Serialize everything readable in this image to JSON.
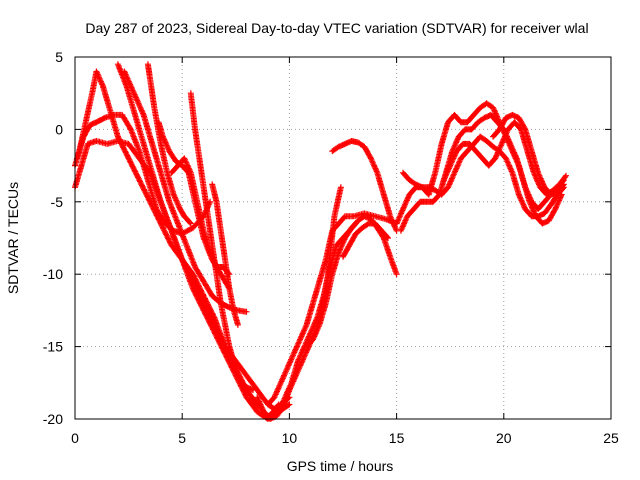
{
  "chart_data": {
    "type": "scatter",
    "title": "Day 287 of 2023, Sidereal Day-to-day VTEC variation (SDTVAR) for receiver wlal",
    "xlabel": "GPS time / hours",
    "ylabel": "SDTVAR / TECUs",
    "xlim": [
      0,
      25
    ],
    "ylim": [
      -20,
      5
    ],
    "xticks": [
      "0",
      "5",
      "10",
      "15",
      "20",
      "25"
    ],
    "yticks": [
      "-20",
      "-15",
      "-10",
      "-5",
      "0",
      "5"
    ],
    "grid": true,
    "marker": "+",
    "color": "#ff0000",
    "series": [
      {
        "x": [
          0.0,
          0.2,
          0.5,
          0.8,
          1.0,
          1.3,
          1.6,
          2.0,
          2.5,
          3.0,
          3.5,
          4.0,
          4.5,
          5.0,
          5.5,
          6.0,
          6.5,
          7.0,
          7.5,
          8.0,
          8.5,
          9.0,
          9.3,
          9.6,
          10.0
        ],
        "y": [
          -2.5,
          -1.5,
          0.5,
          2.5,
          4.0,
          3.0,
          1.5,
          -0.5,
          -2.0,
          -3.5,
          -5.0,
          -6.5,
          -8.0,
          -9.0,
          -10.0,
          -11.5,
          -13.0,
          -15.0,
          -16.5,
          -18.0,
          -19.0,
          -19.8,
          -19.5,
          -19.0,
          -18.5
        ]
      },
      {
        "x": [
          0.0,
          0.3,
          0.6,
          1.0,
          1.5,
          2.0,
          2.5,
          3.0,
          3.5,
          4.0,
          4.5,
          5.0,
          5.5,
          6.0,
          6.5,
          7.0,
          7.5,
          8.0,
          8.5,
          9.0,
          9.5,
          10.0
        ],
        "y": [
          -4.0,
          -2.5,
          -1.0,
          -0.8,
          -1.0,
          -0.8,
          -1.0,
          -2.0,
          -3.0,
          -5.0,
          -7.0,
          -9.0,
          -10.5,
          -12.0,
          -13.5,
          -15.0,
          -16.0,
          -17.0,
          -18.0,
          -19.0,
          -19.5,
          -19.0
        ]
      },
      {
        "x": [
          0.1,
          0.4,
          0.7,
          1.0,
          1.4,
          1.8,
          2.2,
          2.6,
          3.0,
          3.4,
          3.8,
          4.2,
          4.6,
          5.0,
          5.5,
          6.0,
          6.3
        ],
        "y": [
          -2.0,
          -0.5,
          0.3,
          0.5,
          0.8,
          1.0,
          1.0,
          0.0,
          -1.5,
          -3.5,
          -5.5,
          -6.5,
          -7.0,
          -7.2,
          -6.8,
          -6.0,
          -5.0
        ]
      },
      {
        "x": [
          2.0,
          2.4,
          2.8,
          3.2,
          3.6,
          4.0,
          4.5,
          5.0,
          5.5,
          6.0,
          6.5,
          7.0,
          7.5,
          8.0,
          8.5,
          9.0,
          9.5
        ],
        "y": [
          4.5,
          3.0,
          1.0,
          -1.0,
          -3.0,
          -5.0,
          -7.0,
          -9.0,
          -11.0,
          -12.5,
          -14.0,
          -15.5,
          -17.0,
          -18.5,
          -19.5,
          -20.0,
          -19.0
        ]
      },
      {
        "x": [
          2.3,
          2.6,
          2.9,
          3.2,
          3.5,
          3.8,
          4.1,
          4.4,
          4.8,
          5.2,
          5.6,
          6.0,
          6.4,
          6.8,
          7.2,
          7.6,
          8.0
        ],
        "y": [
          4.0,
          3.0,
          2.0,
          1.0,
          -0.5,
          -2.0,
          -3.5,
          -5.0,
          -6.5,
          -8.0,
          -9.5,
          -10.5,
          -11.5,
          -12.0,
          -12.3,
          -12.5,
          -12.6
        ]
      },
      {
        "x": [
          3.4,
          3.5,
          3.7,
          4.0,
          4.3,
          4.6,
          4.9,
          5.1,
          5.4
        ],
        "y": [
          4.5,
          3.5,
          1.5,
          -1.0,
          -3.0,
          -4.5,
          -5.5,
          -6.0,
          -6.5
        ]
      },
      {
        "x": [
          3.9,
          4.1,
          4.4,
          4.7,
          5.0,
          5.3,
          5.6,
          6.0,
          6.4,
          6.8,
          7.2
        ],
        "y": [
          0.5,
          -0.5,
          -1.5,
          -2.2,
          -2.5,
          -3.0,
          -5.0,
          -7.5,
          -9.0,
          -10.0,
          -11.0
        ]
      },
      {
        "x": [
          4.5,
          4.8,
          5.1,
          5.4,
          5.7,
          6.0,
          6.3,
          6.6,
          6.9,
          7.2
        ],
        "y": [
          -3.0,
          -2.5,
          -2.0,
          -3.0,
          -5.0,
          -7.0,
          -8.5,
          -9.5,
          -9.5,
          -10.0
        ]
      },
      {
        "x": [
          5.4,
          5.6,
          5.8,
          6.0,
          6.2,
          6.4,
          6.6,
          6.8,
          7.0,
          7.2,
          7.4,
          7.6,
          7.8,
          8.0,
          8.3
        ],
        "y": [
          2.5,
          0.0,
          -2.0,
          -4.0,
          -6.0,
          -8.0,
          -10.0,
          -12.0,
          -13.5,
          -15.0,
          -16.0,
          -17.0,
          -17.5,
          -17.8,
          -18.0
        ]
      },
      {
        "x": [
          6.4,
          6.6,
          6.8,
          7.0,
          7.2,
          7.4,
          7.6
        ],
        "y": [
          -3.8,
          -5.0,
          -7.0,
          -9.0,
          -11.0,
          -12.5,
          -13.5
        ]
      },
      {
        "x": [
          8.5,
          8.8,
          9.1,
          9.4,
          9.7,
          10.0,
          10.3,
          10.6,
          10.9,
          11.2,
          11.5,
          11.8,
          12.1,
          12.4
        ],
        "y": [
          -18.5,
          -19.5,
          -20.0,
          -19.8,
          -19.2,
          -18.0,
          -17.0,
          -16.0,
          -15.0,
          -14.0,
          -12.5,
          -10.0,
          -6.0,
          -4.0
        ]
      },
      {
        "x": [
          9.0,
          9.3,
          9.6,
          9.9,
          10.2,
          10.5,
          10.8,
          11.1,
          11.4,
          11.7,
          12.0,
          12.3,
          12.6,
          13.0,
          13.5,
          14.0,
          14.5,
          15.0
        ],
        "y": [
          -19.0,
          -18.5,
          -17.5,
          -16.5,
          -15.5,
          -14.5,
          -13.5,
          -12.0,
          -10.5,
          -9.0,
          -7.0,
          -6.5,
          -6.0,
          -6.0,
          -5.8,
          -6.0,
          -6.2,
          -6.5
        ]
      },
      {
        "x": [
          9.5,
          9.8,
          10.1,
          10.4,
          10.7,
          11.0,
          11.3,
          11.6,
          11.9,
          12.2,
          12.5,
          12.8,
          13.1
        ],
        "y": [
          -19.5,
          -18.5,
          -17.5,
          -16.0,
          -15.0,
          -14.0,
          -13.0,
          -11.5,
          -9.5,
          -8.0,
          -7.5,
          -7.0,
          -6.5
        ]
      },
      {
        "x": [
          10.8,
          11.1,
          11.4,
          11.7,
          12.0,
          12.3,
          12.6,
          12.9,
          13.2,
          13.5,
          13.8,
          14.1,
          14.4,
          14.7,
          15.0
        ],
        "y": [
          -15.0,
          -14.5,
          -13.5,
          -12.0,
          -10.0,
          -8.5,
          -7.5,
          -6.8,
          -6.3,
          -6.0,
          -6.2,
          -6.8,
          -7.5,
          -8.8,
          -10.0
        ]
      },
      {
        "x": [
          12.0,
          12.3,
          12.6,
          12.9,
          13.2,
          13.5,
          13.8,
          14.1,
          14.4,
          14.7,
          15.0
        ],
        "y": [
          -1.5,
          -1.2,
          -1.0,
          -0.8,
          -0.9,
          -1.2,
          -2.0,
          -3.0,
          -4.5,
          -6.0,
          -7.0
        ]
      },
      {
        "x": [
          12.5,
          12.8,
          13.1,
          13.4,
          13.7,
          14.0,
          14.3,
          14.6
        ],
        "y": [
          -8.8,
          -8.0,
          -7.2,
          -6.8,
          -6.5,
          -6.5,
          -7.0,
          -7.5
        ]
      },
      {
        "x": [
          15.0,
          15.3,
          15.6,
          15.9,
          16.2,
          16.5,
          16.8,
          17.1,
          17.4,
          17.7,
          18.0,
          18.3,
          18.6,
          18.9,
          19.2,
          19.5,
          19.8,
          20.1,
          20.4,
          20.7,
          21.0,
          21.3,
          21.6,
          21.9,
          22.2,
          22.5,
          22.8
        ],
        "y": [
          -6.5,
          -5.5,
          -4.5,
          -4.0,
          -4.0,
          -4.5,
          -3.0,
          -1.0,
          0.5,
          1.0,
          0.5,
          0.5,
          1.0,
          1.5,
          1.8,
          1.5,
          0.5,
          -0.5,
          -1.5,
          -2.5,
          -4.0,
          -5.0,
          -5.5,
          -5.0,
          -4.5,
          -4.0,
          -3.5
        ]
      },
      {
        "x": [
          15.2,
          15.5,
          15.8,
          16.1,
          16.4,
          16.7,
          17.0,
          17.3,
          17.6,
          17.9,
          18.2,
          18.5,
          18.8,
          19.1,
          19.4,
          19.7,
          20.0,
          20.3,
          20.6,
          20.9,
          21.2,
          21.5,
          21.8,
          22.1,
          22.4,
          22.7
        ],
        "y": [
          -7.0,
          -6.0,
          -5.5,
          -5.0,
          -5.0,
          -5.0,
          -4.5,
          -3.0,
          -1.5,
          -0.5,
          0.0,
          0.0,
          0.5,
          0.8,
          1.0,
          0.5,
          0.0,
          -1.0,
          -2.0,
          -3.5,
          -5.0,
          -6.0,
          -6.5,
          -6.3,
          -5.5,
          -4.5
        ]
      },
      {
        "x": [
          15.3,
          15.6,
          15.9,
          16.2,
          16.5,
          16.8,
          17.1,
          17.4,
          17.7,
          18.0,
          18.3,
          18.6,
          18.9,
          19.2,
          19.5,
          19.8,
          20.1,
          20.4,
          20.7,
          21.0,
          21.3,
          21.6,
          21.9,
          22.2,
          22.5,
          22.8
        ],
        "y": [
          -3.0,
          -3.5,
          -3.8,
          -4.0,
          -4.0,
          -4.2,
          -4.5,
          -4.0,
          -3.0,
          -2.0,
          -1.5,
          -1.0,
          -0.5,
          -0.8,
          -1.2,
          -1.5,
          -2.0,
          -3.0,
          -4.5,
          -5.5,
          -6.0,
          -6.0,
          -5.8,
          -5.2,
          -4.5,
          -4.0
        ]
      },
      {
        "x": [
          17.2,
          17.5,
          17.8,
          18.1,
          18.4,
          18.7,
          19.0,
          19.3,
          19.6,
          19.9,
          20.2,
          20.5,
          20.8,
          21.1,
          21.4,
          21.7,
          22.0,
          22.3,
          22.6,
          22.9
        ],
        "y": [
          -3.5,
          -2.5,
          -1.5,
          -1.0,
          -1.0,
          -1.5,
          -2.0,
          -2.5,
          -2.0,
          -1.0,
          0.0,
          0.5,
          0.0,
          -1.5,
          -3.0,
          -4.0,
          -4.5,
          -4.2,
          -3.8,
          -3.2
        ]
      },
      {
        "x": [
          19.5,
          19.8,
          20.1,
          20.4,
          20.7,
          21.0,
          21.3,
          21.6,
          21.9,
          22.2,
          22.5,
          22.8
        ],
        "y": [
          -0.5,
          0.0,
          0.8,
          1.0,
          0.8,
          0.0,
          -1.5,
          -3.0,
          -4.0,
          -4.5,
          -4.3,
          -3.8
        ]
      }
    ]
  }
}
